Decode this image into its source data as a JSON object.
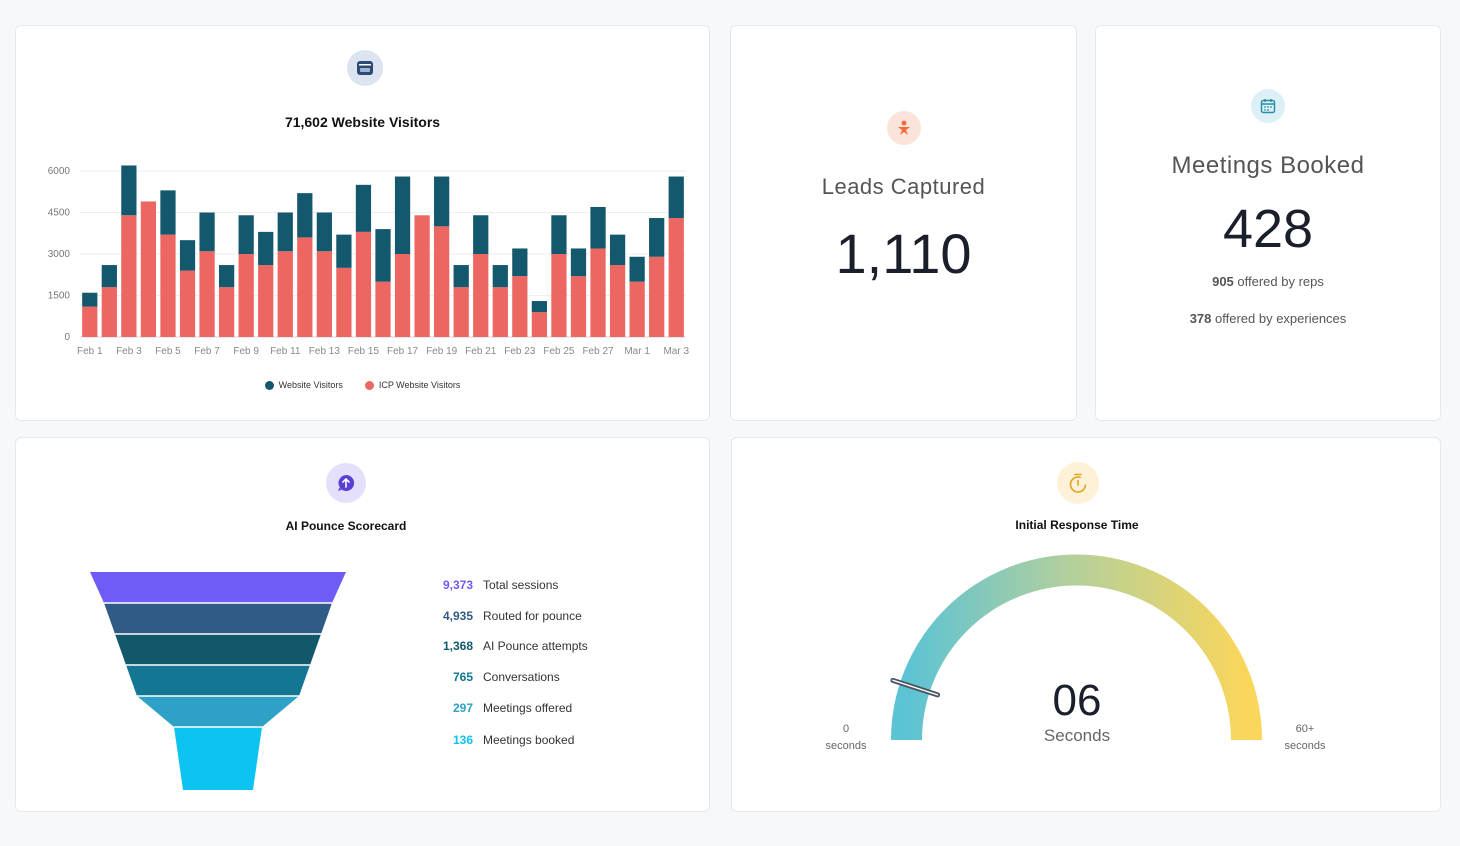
{
  "visitors": {
    "title": "71,602 Website Visitors",
    "icon": "browser-window-icon",
    "chart_data": {
      "type": "bar",
      "stacked": true,
      "categories": [
        "Feb 1",
        "Feb 2",
        "Feb 3",
        "Feb 4",
        "Feb 5",
        "Feb 6",
        "Feb 7",
        "Feb 8",
        "Feb 9",
        "Feb 10",
        "Feb 11",
        "Feb 12",
        "Feb 13",
        "Feb 14",
        "Feb 15",
        "Feb 16",
        "Feb 17",
        "Feb 18",
        "Feb 19",
        "Feb 20",
        "Feb 21",
        "Feb 22",
        "Feb 23",
        "Feb 24",
        "Feb 25",
        "Feb 26",
        "Feb 27",
        "Feb 28",
        "Mar 1",
        "Mar 2",
        "Mar 3"
      ],
      "tick_labels": [
        "Feb 1",
        "Feb 3",
        "Feb 5",
        "Feb 7",
        "Feb 9",
        "Feb 11",
        "Feb 13",
        "Feb 15",
        "Feb 17",
        "Feb 19",
        "Feb 21",
        "Feb 23",
        "Feb 25",
        "Feb 27",
        "Mar 1",
        "Mar 3"
      ],
      "y_ticks": [
        "0",
        "1500",
        "3000",
        "4500",
        "6000"
      ],
      "ylim": [
        0,
        6000
      ],
      "series": [
        {
          "name": "ICP Website Visitors",
          "color": "#ec6762",
          "values": [
            1100,
            1800,
            4400,
            4900,
            3700,
            2400,
            3100,
            1800,
            3000,
            2600,
            3100,
            3600,
            3100,
            2500,
            3800,
            2000,
            3000,
            4400,
            4000,
            1800,
            3000,
            1800,
            2200,
            900,
            3000,
            2200,
            3200,
            2600,
            2000,
            2900,
            4300
          ]
        },
        {
          "name": "Website Visitors",
          "color": "#14586d",
          "values": [
            500,
            800,
            1800,
            0,
            1600,
            1100,
            1400,
            800,
            1400,
            1200,
            1400,
            1600,
            1400,
            1200,
            1700,
            1900,
            2800,
            0,
            1800,
            800,
            1400,
            800,
            1000,
            400,
            1400,
            1000,
            1500,
            1100,
            900,
            1400,
            1500
          ]
        }
      ],
      "legend": "bottom"
    }
  },
  "leads": {
    "label": "Leads Captured",
    "value": "1,110",
    "icon": "person-star-icon"
  },
  "meetings": {
    "label": "Meetings Booked",
    "value": "428",
    "reps_num": "905",
    "reps_text": " offered by reps",
    "exp_num": "378",
    "exp_text": " offered by experiences",
    "icon": "calendar-icon"
  },
  "scorecard": {
    "title": "AI Pounce Scorecard",
    "icon": "chat-arrow-up-icon",
    "steps": [
      {
        "value": "9,373",
        "label": "Total sessions",
        "color": "#6f5cf6"
      },
      {
        "value": "4,935",
        "label": "Routed for pounce",
        "color": "#2f5b86"
      },
      {
        "value": "1,368",
        "label": "AI Pounce attempts",
        "color": "#12586a"
      },
      {
        "value": "765",
        "label": "Conversations",
        "color": "#137793"
      },
      {
        "value": "297",
        "label": "Meetings offered",
        "color": "#2ea2c6"
      },
      {
        "value": "136",
        "label": "Meetings booked",
        "color": "#0cc3f2"
      }
    ]
  },
  "response": {
    "title": "Initial Response Time",
    "icon": "stopwatch-icon",
    "value": "06",
    "unit": "Seconds",
    "gauge_fraction": 0.1,
    "min_num": "0",
    "min_unit": "seconds",
    "max_num": "60+",
    "max_unit": "seconds"
  }
}
